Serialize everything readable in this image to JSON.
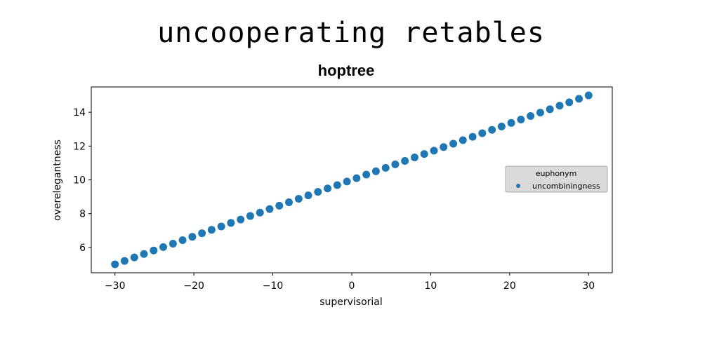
{
  "suptitle": "uncooperating retables",
  "chart_data": {
    "type": "scatter",
    "title": "hoptree",
    "xlabel": "supervisorial",
    "ylabel": "overelegantness",
    "xlim": [
      -33,
      33
    ],
    "ylim": [
      4.5,
      15.5
    ],
    "xticks": [
      -30,
      -20,
      -10,
      0,
      10,
      20,
      30
    ],
    "xtick_labels": [
      "−30",
      "−20",
      "−10",
      "0",
      "10",
      "20",
      "30"
    ],
    "yticks": [
      6,
      8,
      10,
      12,
      14
    ],
    "ytick_labels": [
      "6",
      "8",
      "10",
      "12",
      "14"
    ],
    "grid": false,
    "legend": {
      "title": "euphonym",
      "placement": "center-right"
    },
    "series": [
      {
        "name": "uncombiningness",
        "color": "#1f77b4",
        "x": [
          -30.0,
          -28.78,
          -27.55,
          -26.33,
          -25.1,
          -23.88,
          -22.65,
          -21.43,
          -20.2,
          -18.98,
          -17.76,
          -16.53,
          -15.31,
          -14.08,
          -12.86,
          -11.63,
          -10.41,
          -9.18,
          -7.96,
          -6.73,
          -5.51,
          -4.29,
          -3.06,
          -1.84,
          -0.61,
          0.61,
          1.84,
          3.06,
          4.29,
          5.51,
          6.73,
          7.96,
          9.18,
          10.41,
          11.63,
          12.86,
          14.08,
          15.31,
          16.53,
          17.76,
          18.98,
          20.2,
          21.43,
          22.65,
          23.88,
          25.1,
          26.33,
          27.55,
          28.78,
          30.0
        ],
        "y": [
          5.0,
          5.2,
          5.41,
          5.61,
          5.82,
          6.02,
          6.22,
          6.43,
          6.63,
          6.84,
          7.04,
          7.24,
          7.45,
          7.65,
          7.86,
          8.06,
          8.27,
          8.47,
          8.67,
          8.88,
          9.08,
          9.29,
          9.49,
          9.69,
          9.9,
          10.1,
          10.31,
          10.51,
          10.71,
          10.92,
          11.12,
          11.33,
          11.53,
          11.73,
          11.94,
          12.14,
          12.35,
          12.55,
          12.76,
          12.96,
          13.16,
          13.37,
          13.57,
          13.78,
          13.98,
          14.18,
          14.39,
          14.59,
          14.8,
          15.0
        ]
      }
    ]
  }
}
